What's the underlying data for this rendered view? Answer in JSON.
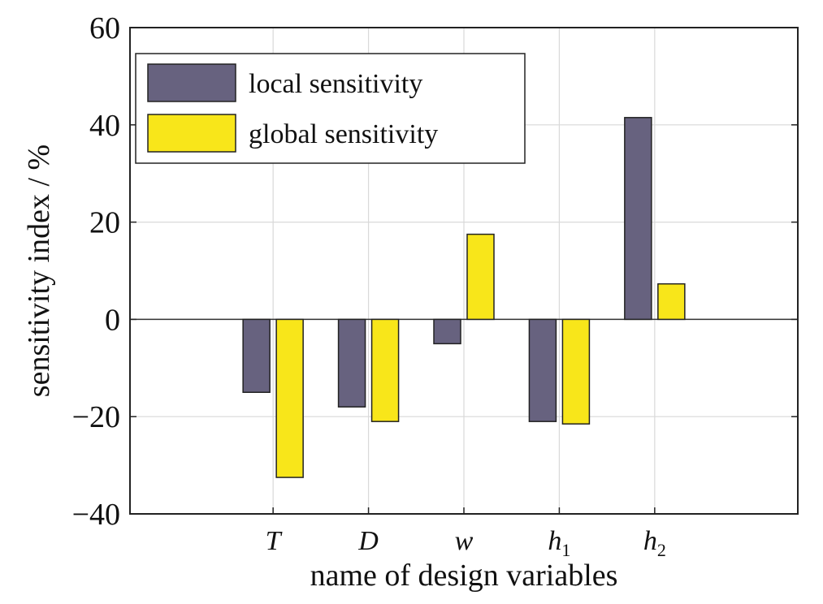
{
  "chart_data": {
    "type": "bar",
    "categories": [
      "T",
      "D",
      "w",
      "h1",
      "h2"
    ],
    "category_display": [
      {
        "main": "T",
        "sub": ""
      },
      {
        "main": "D",
        "sub": ""
      },
      {
        "main": "w",
        "sub": ""
      },
      {
        "main": "h",
        "sub": "1"
      },
      {
        "main": "h",
        "sub": "2"
      }
    ],
    "series": [
      {
        "name": "local sensitivity",
        "color": "#67627f",
        "values": [
          -15,
          -18,
          -5,
          -21,
          41.5
        ]
      },
      {
        "name": "global sensitivity",
        "color": "#f8e61a",
        "values": [
          -32.5,
          -21,
          17.5,
          -21.5,
          7.3
        ]
      }
    ],
    "xlabel": "name of design variables",
    "ylabel": "sensitivity index / %",
    "ylim": [
      -40,
      60
    ],
    "yticks": [
      "−40",
      "−20",
      "0",
      "20",
      "40",
      "60"
    ],
    "grid": true,
    "legend_position": "top-left"
  }
}
